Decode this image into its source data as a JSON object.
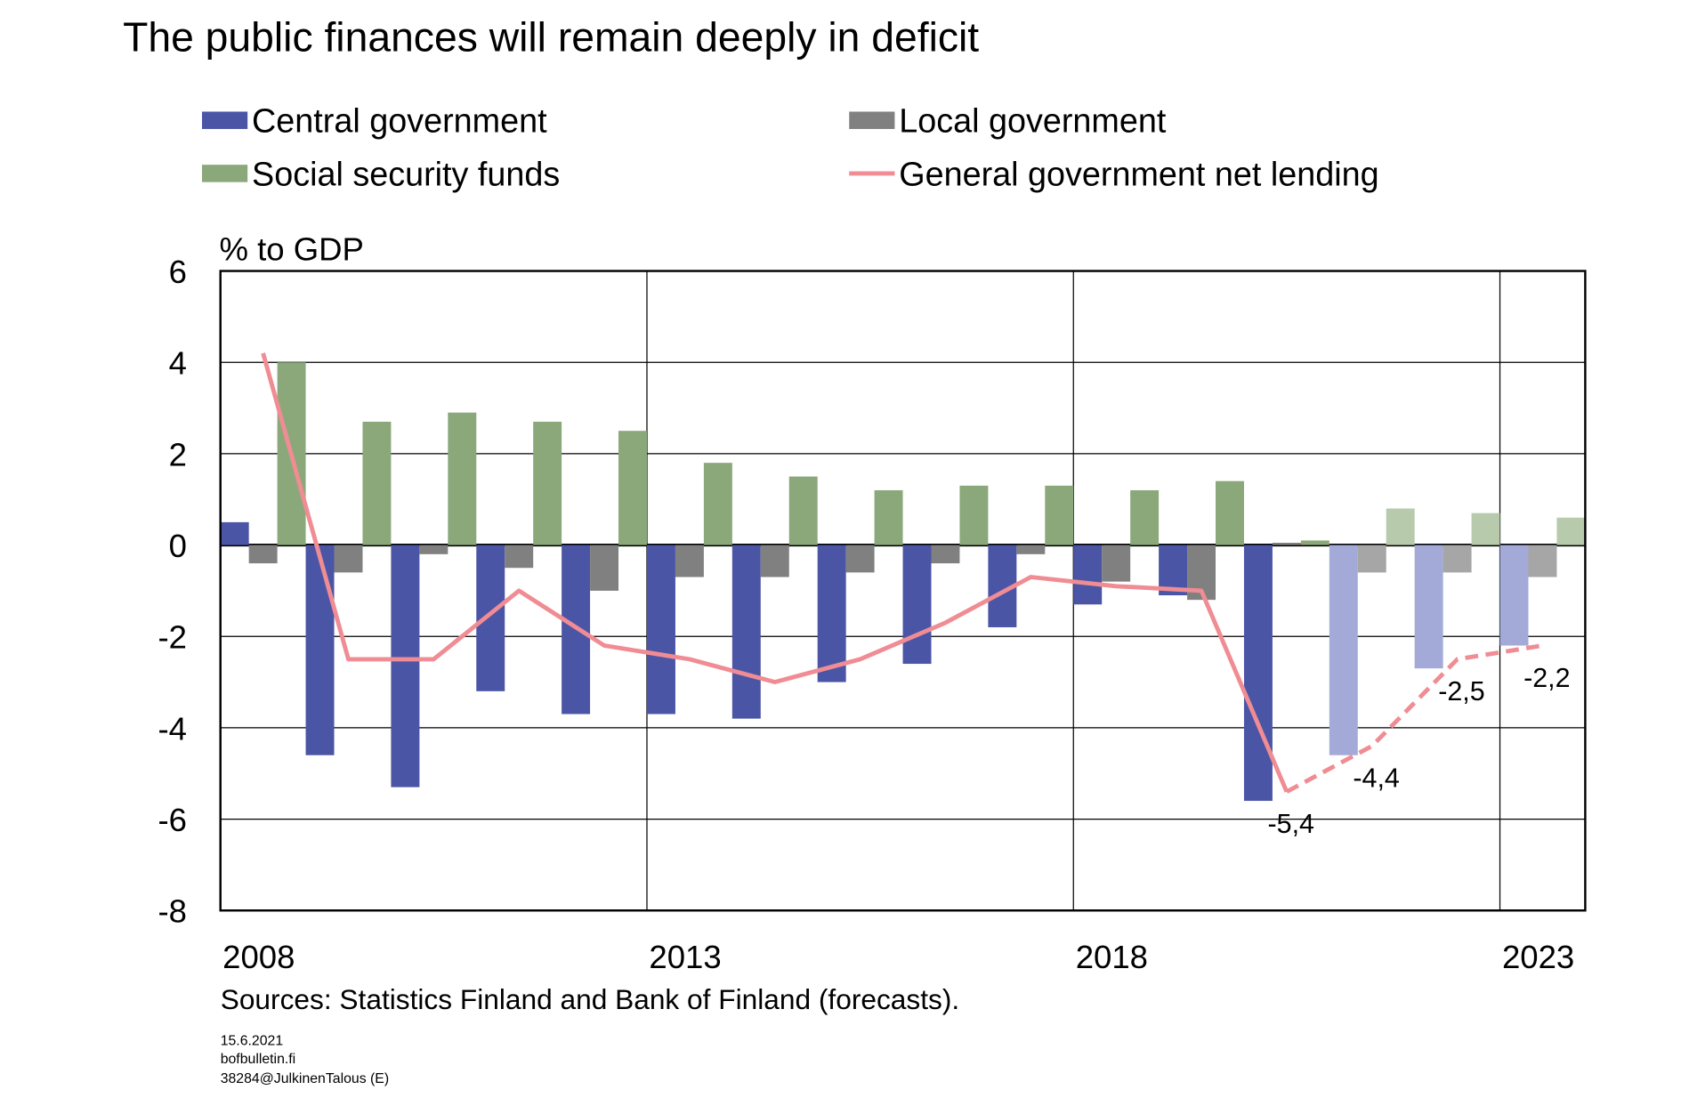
{
  "chart_data": {
    "type": "bar_line",
    "title": "The public finances will remain deeply in deficit",
    "y_label": "% to GDP",
    "source": "Sources: Statistics Finland and Bank of Finland (forecasts).",
    "footer": [
      "15.6.2021",
      "bofbulletin.fi",
      "38284@JulkinenTalous (E)"
    ],
    "categories": [
      "2008",
      null,
      null,
      null,
      null,
      "2013",
      null,
      null,
      null,
      null,
      "2018",
      null,
      null,
      null,
      null,
      "2023"
    ],
    "forecast_start_index": 13,
    "series": [
      {
        "name": "Central government",
        "type": "bar",
        "color": "#4b55a5",
        "forecast_color": "#a3aad8",
        "values": [
          0.5,
          -4.6,
          -5.3,
          -3.2,
          -3.7,
          -3.7,
          -3.8,
          -3.0,
          -2.6,
          -1.8,
          -1.3,
          -1.1,
          -5.6,
          -4.6,
          -2.7,
          -2.2
        ]
      },
      {
        "name": "Local government",
        "type": "bar",
        "color": "#808080",
        "forecast_color": "#a6a6a6",
        "values": [
          -0.4,
          -0.6,
          -0.2,
          -0.5,
          -1.0,
          -0.7,
          -0.7,
          -0.6,
          -0.4,
          -0.2,
          -0.8,
          -1.2,
          0.05,
          -0.6,
          -0.6,
          -0.7
        ]
      },
      {
        "name": "Social security funds",
        "type": "bar",
        "color": "#8ba87a",
        "forecast_color": "#b7cbac",
        "values": [
          4.0,
          2.7,
          2.9,
          2.7,
          2.5,
          1.8,
          1.5,
          1.2,
          1.3,
          1.3,
          1.2,
          1.4,
          0.1,
          0.8,
          0.7,
          0.6
        ]
      },
      {
        "name": "General government net lending",
        "type": "line",
        "color": "#f08c93",
        "values": [
          4.2,
          -2.5,
          -2.5,
          -1.0,
          -2.2,
          -2.5,
          -3.0,
          -2.5,
          -1.7,
          -0.7,
          -0.9,
          -1.0,
          -5.4,
          -4.4,
          -2.5,
          -2.2
        ],
        "value_labels": [
          null,
          null,
          null,
          null,
          null,
          null,
          null,
          null,
          null,
          null,
          null,
          null,
          "-5,4",
          "-4,4",
          "-2,5",
          "-2,2"
        ]
      }
    ],
    "ylim": [
      -8,
      6
    ],
    "yticks": [
      -8,
      -6,
      -4,
      -2,
      0,
      2,
      4,
      6
    ],
    "grid": true
  }
}
